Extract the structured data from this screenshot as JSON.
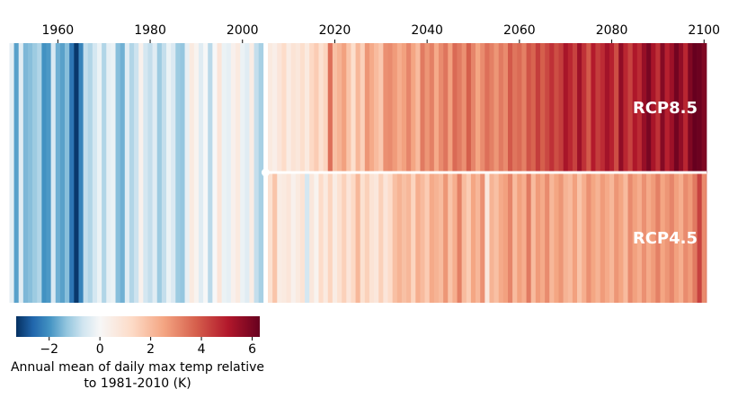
{
  "chart_data": {
    "type": "heatmap",
    "title": "",
    "xlabel": "",
    "x_ticks": [
      1960,
      1980,
      2000,
      2020,
      2040,
      2060,
      2080,
      2100
    ],
    "xlim": [
      1950,
      2101
    ],
    "split_year": 2005,
    "historical": {
      "start_year": 1950,
      "values": [
        -0.3,
        -1.8,
        -0.4,
        -1.5,
        -1.4,
        -1.2,
        -1.0,
        -2.0,
        -1.9,
        -0.5,
        -1.6,
        -1.8,
        -1.4,
        -2.4,
        -3.2,
        -2.2,
        -0.8,
        -1.0,
        -0.6,
        -0.2,
        -1.0,
        -0.3,
        -0.2,
        -1.4,
        -1.6,
        -0.4,
        -1.0,
        -0.7,
        0.3,
        -0.6,
        -0.8,
        -0.4,
        -1.2,
        -0.8,
        -0.2,
        -0.5,
        -1.2,
        -1.3,
        -0.3,
        0.6,
        0.2,
        -0.4,
        0.0,
        -0.9,
        0.0,
        0.8,
        -0.2,
        -0.3,
        0.3,
        0.6,
        -0.2,
        -0.4,
        0.5,
        -0.8,
        -1.1
      ],
      "label": ""
    },
    "scenarios": [
      {
        "name": "RCP8.5",
        "start_year": 2005,
        "values": [
          0.6,
          0.4,
          0.8,
          1.2,
          0.5,
          0.9,
          0.7,
          1.1,
          0.6,
          1.3,
          1.6,
          1.0,
          1.4,
          3.5,
          1.9,
          2.2,
          2.6,
          1.8,
          1.1,
          2.1,
          1.5,
          2.8,
          2.4,
          2.0,
          1.7,
          2.9,
          3.0,
          2.7,
          2.3,
          2.6,
          3.1,
          2.5,
          2.0,
          3.3,
          2.8,
          3.2,
          2.4,
          3.0,
          3.4,
          2.6,
          3.6,
          3.3,
          2.9,
          3.8,
          3.1,
          2.5,
          3.0,
          3.5,
          3.2,
          2.8,
          3.3,
          3.0,
          3.9,
          3.4,
          3.6,
          3.2,
          4.0,
          3.7,
          4.4,
          3.8,
          4.2,
          4.6,
          4.1,
          4.4,
          5.2,
          4.8,
          4.3,
          5.4,
          4.6,
          3.9,
          5.0,
          4.4,
          4.7,
          5.3,
          4.9,
          4.1,
          5.6,
          4.8,
          4.3,
          5.1,
          4.7,
          5.5,
          6.0,
          5.2,
          4.6,
          5.8,
          4.9,
          5.4,
          6.1,
          5.6,
          4.8,
          5.9,
          6.3,
          6.2,
          5.9,
          6.3
        ],
        "label_visible": true
      },
      {
        "name": "RCP4.5",
        "start_year": 2005,
        "values": [
          1.0,
          1.8,
          0.5,
          0.6,
          0.8,
          0.3,
          0.6,
          0.9,
          -0.6,
          0.7,
          0.2,
          1.2,
          0.6,
          1.4,
          0.5,
          1.0,
          1.5,
          0.8,
          1.3,
          2.1,
          1.0,
          1.5,
          0.9,
          0.7,
          1.5,
          0.8,
          1.2,
          1.9,
          2.2,
          1.9,
          2.1,
          1.4,
          2.3,
          2.0,
          1.6,
          2.4,
          2.2,
          2.0,
          2.8,
          1.8,
          2.3,
          3.2,
          2.0,
          1.6,
          2.5,
          2.1,
          2.9,
          0.7,
          2.2,
          1.9,
          2.4,
          2.6,
          3.1,
          2.0,
          2.6,
          2.3,
          3.3,
          2.0,
          2.7,
          2.4,
          3.0,
          2.1,
          2.5,
          2.8,
          2.2,
          2.0,
          2.6,
          1.8,
          2.3,
          2.9,
          2.5,
          2.2,
          2.7,
          2.4,
          2.1,
          2.8,
          2.5,
          2.0,
          3.0,
          2.6,
          2.3,
          2.9,
          2.4,
          2.7,
          3.2,
          2.5,
          2.8,
          3.1,
          2.6,
          2.3,
          3.0,
          2.7,
          3.3,
          4.3,
          3.0,
          4.0
        ],
        "label_visible": true
      }
    ],
    "colorbar": {
      "vmin": -3.3,
      "vmax": 6.3,
      "ticks": [
        -2,
        0,
        2,
        4,
        6
      ],
      "tick_labels": [
        "−2",
        "0",
        "2",
        "4",
        "6"
      ],
      "label_line1": "Annual mean of daily max temp relative",
      "label_line2": "to 1981-2010 (K)",
      "colormap": "RdBu_r",
      "colormap_stops": [
        "#053061",
        "#2166ac",
        "#4393c3",
        "#92c5de",
        "#d1e5f0",
        "#f7f7f7",
        "#fddbc7",
        "#f4a582",
        "#d6604d",
        "#b2182b",
        "#67001f"
      ]
    },
    "split_line_color": "#ffffff"
  }
}
